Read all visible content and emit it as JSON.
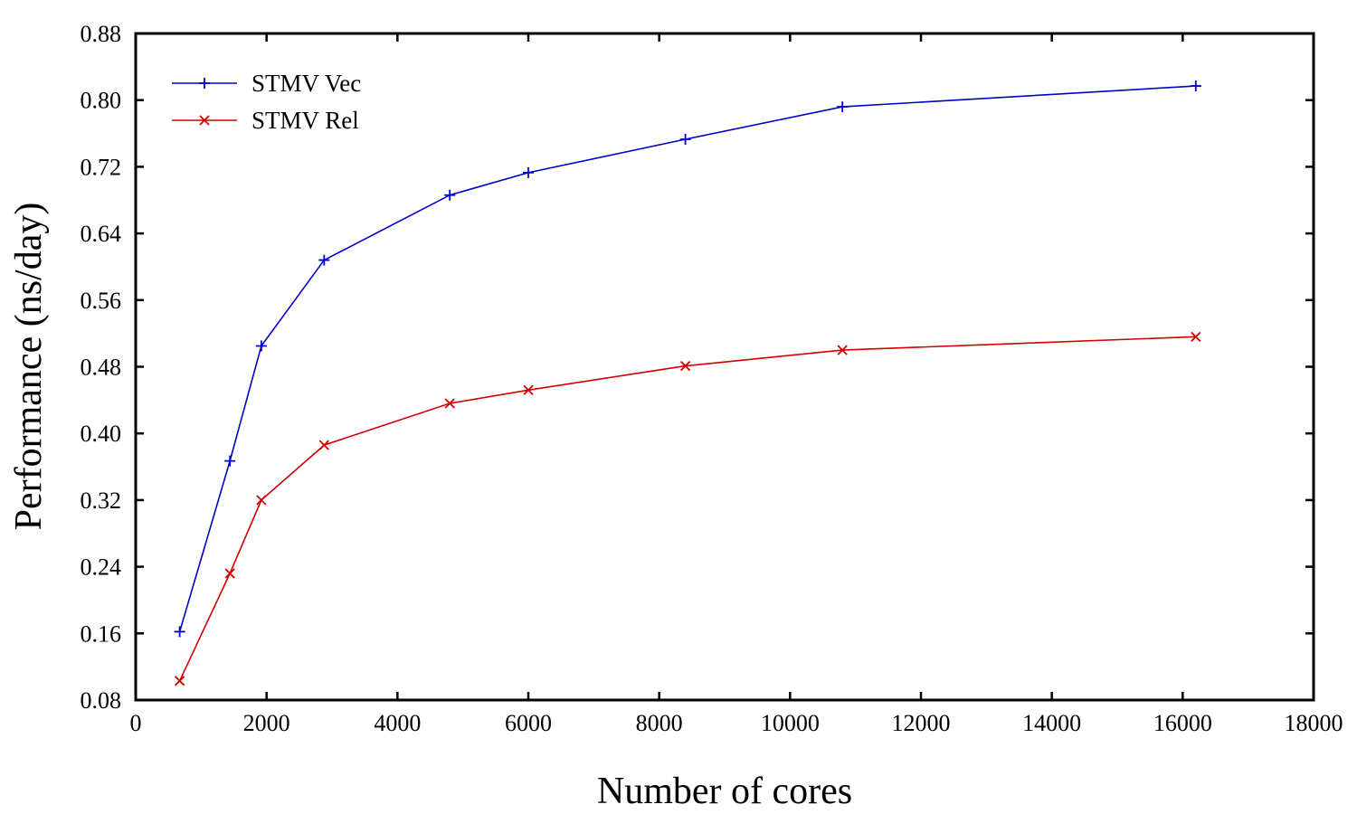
{
  "chart_data": {
    "type": "line",
    "title": "",
    "xlabel": "Number of cores",
    "ylabel": "Performance (ns/day)",
    "xlim": [
      0,
      18000
    ],
    "ylim": [
      0.08,
      0.88
    ],
    "xticks": [
      0,
      2000,
      4000,
      6000,
      8000,
      10000,
      12000,
      14000,
      16000,
      18000
    ],
    "yticks": [
      "0.08",
      "0.16",
      "0.24",
      "0.32",
      "0.40",
      "0.48",
      "0.56",
      "0.64",
      "0.72",
      "0.80",
      "0.88"
    ],
    "grid": false,
    "legend_position": "top-left",
    "series": [
      {
        "name": "STMV Vec",
        "color": "#0000c8",
        "marker": "plus",
        "x": [
          672,
          1440,
          1920,
          2880,
          4800,
          6000,
          8400,
          10800,
          16200
        ],
        "y": [
          0.162,
          0.367,
          0.505,
          0.608,
          0.686,
          0.713,
          0.753,
          0.792,
          0.817
        ]
      },
      {
        "name": "STMV Rel",
        "color": "#d00000",
        "marker": "cross",
        "x": [
          672,
          1440,
          1920,
          2880,
          4800,
          6000,
          8400,
          10800,
          16200
        ],
        "y": [
          0.103,
          0.232,
          0.32,
          0.386,
          0.436,
          0.452,
          0.481,
          0.5,
          0.516
        ]
      }
    ]
  }
}
